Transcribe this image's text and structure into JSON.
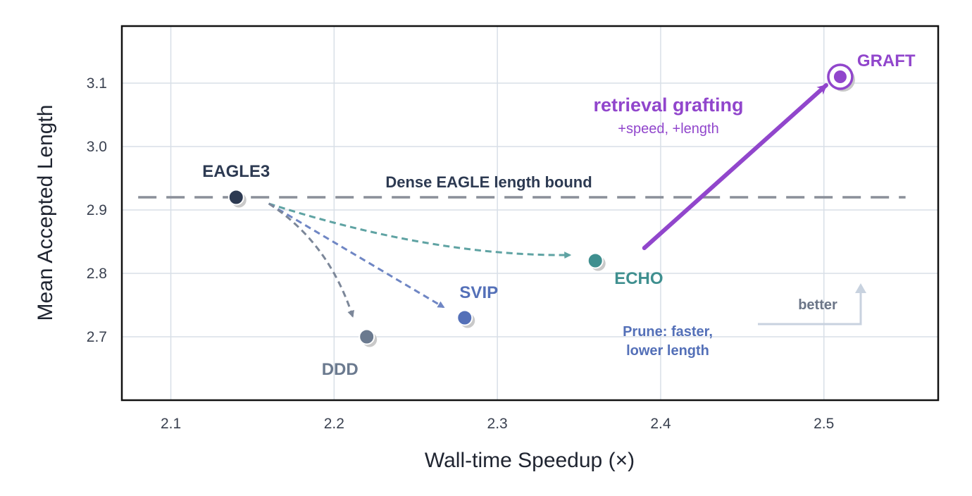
{
  "chart_data": {
    "type": "scatter",
    "xlabel": "Wall-time Speedup (×)",
    "ylabel": "Mean Accepted Length",
    "xlim": [
      2.07,
      2.57
    ],
    "ylim": [
      2.6,
      3.19
    ],
    "xticks": [
      "2.1",
      "2.2",
      "2.3",
      "2.4",
      "2.5"
    ],
    "yticks": [
      "2.7",
      "2.8",
      "2.9",
      "3.0",
      "3.1"
    ],
    "grid": true,
    "points": [
      {
        "name": "EAGLE3",
        "x": 2.14,
        "y": 2.92,
        "color": "#2d3a52"
      },
      {
        "name": "DDD",
        "x": 2.22,
        "y": 2.7,
        "color": "#6b7a8f"
      },
      {
        "name": "SVIP",
        "x": 2.28,
        "y": 2.73,
        "color": "#5470b8"
      },
      {
        "name": "ECHO",
        "x": 2.36,
        "y": 2.82,
        "color": "#3f8f8f"
      },
      {
        "name": "GRAFT",
        "x": 2.51,
        "y": 3.11,
        "color": "#9146cc"
      }
    ],
    "reference_line": {
      "label": "Dense EAGLE length bound",
      "y": 2.92,
      "color": "#8a8f99"
    },
    "annotations": {
      "graft_title": "retrieval grafting",
      "graft_sub": "+speed, +length",
      "prune_line1": "Prune: faster,",
      "prune_line2": "lower length",
      "better": "better"
    },
    "colors": {
      "graft": "#9146cc",
      "echo": "#5fa3a3",
      "svip": "#6f86c4",
      "ddd": "#7c8799",
      "prune": "#5470b8",
      "better": "#c8d2df",
      "grid": "#d8dfe7"
    }
  }
}
